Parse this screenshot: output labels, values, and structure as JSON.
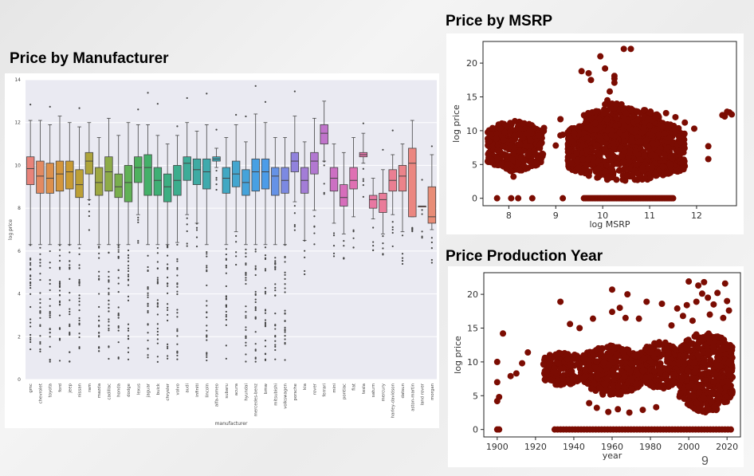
{
  "slide": {
    "title_manufacturer": "Price by Manufacturer",
    "title_msrp": "Price by MSRP",
    "title_year": "Price Production Year",
    "page_number": "9"
  },
  "chart_data": [
    {
      "type": "box",
      "title": "Price by Manufacturer",
      "xlabel": "manufacturer",
      "ylabel": "log price",
      "ylim": [
        0,
        14
      ],
      "yticks": [
        0,
        2,
        4,
        6,
        8,
        10,
        12,
        14
      ],
      "grid": true,
      "series": [
        {
          "name": "gmc",
          "q1": 9.1,
          "median": 9.85,
          "q3": 10.4,
          "lo": 6.3,
          "hi": 12.1,
          "color": "#e8837a"
        },
        {
          "name": "chevrolet",
          "q1": 8.7,
          "median": 9.5,
          "q3": 10.2,
          "lo": 6.3,
          "hi": 12.1,
          "color": "#e38a62"
        },
        {
          "name": "toyota",
          "q1": 8.7,
          "median": 9.4,
          "q3": 10.1,
          "lo": 6.3,
          "hi": 11.9,
          "color": "#dd904c"
        },
        {
          "name": "ford",
          "q1": 8.8,
          "median": 9.6,
          "q3": 10.2,
          "lo": 6.3,
          "hi": 12.3,
          "color": "#d4963c"
        },
        {
          "name": "jeep",
          "q1": 8.9,
          "median": 9.7,
          "q3": 10.2,
          "lo": 6.3,
          "hi": 12.0,
          "color": "#c99b33"
        },
        {
          "name": "nissan",
          "q1": 8.5,
          "median": 9.1,
          "q3": 9.8,
          "lo": 6.3,
          "hi": 11.8,
          "color": "#bca036"
        },
        {
          "name": "ram",
          "q1": 9.6,
          "median": 10.2,
          "q3": 10.6,
          "lo": 8.4,
          "hi": 12.0,
          "color": "#aea43c"
        },
        {
          "name": "mazda",
          "q1": 8.6,
          "median": 9.2,
          "q3": 9.9,
          "lo": 6.3,
          "hi": 11.3,
          "color": "#9ea843"
        },
        {
          "name": "cadillac",
          "q1": 8.8,
          "median": 9.7,
          "q3": 10.4,
          "lo": 6.3,
          "hi": 12.2,
          "color": "#8dab48"
        },
        {
          "name": "honda",
          "q1": 8.5,
          "median": 9.0,
          "q3": 9.6,
          "lo": 6.3,
          "hi": 11.4,
          "color": "#79ae4d"
        },
        {
          "name": "dodge",
          "q1": 8.3,
          "median": 9.2,
          "q3": 10.0,
          "lo": 6.3,
          "hi": 12.0,
          "color": "#61b156"
        },
        {
          "name": "lexus",
          "q1": 9.2,
          "median": 9.9,
          "q3": 10.4,
          "lo": 7.7,
          "hi": 11.9,
          "color": "#4fb15e"
        },
        {
          "name": "jaguar",
          "q1": 8.6,
          "median": 9.9,
          "q3": 10.5,
          "lo": 6.3,
          "hi": 11.9,
          "color": "#44b069"
        },
        {
          "name": "buick",
          "q1": 8.6,
          "median": 9.3,
          "q3": 9.9,
          "lo": 6.3,
          "hi": 11.4,
          "color": "#3faf75"
        },
        {
          "name": "chrysler",
          "q1": 8.3,
          "median": 9.0,
          "q3": 9.6,
          "lo": 6.3,
          "hi": 11.0,
          "color": "#3dae82"
        },
        {
          "name": "volvo",
          "q1": 8.6,
          "median": 9.3,
          "q3": 10.0,
          "lo": 6.4,
          "hi": 11.4,
          "color": "#3cad8d"
        },
        {
          "name": "audi",
          "q1": 9.3,
          "median": 10.1,
          "q3": 10.4,
          "lo": 7.7,
          "hi": 12.0,
          "color": "#3dac98"
        },
        {
          "name": "infiniti",
          "q1": 9.1,
          "median": 9.8,
          "q3": 10.3,
          "lo": 7.3,
          "hi": 11.6,
          "color": "#3eaba3"
        },
        {
          "name": "lincoln",
          "q1": 8.9,
          "median": 9.7,
          "q3": 10.3,
          "lo": 6.3,
          "hi": 11.9,
          "color": "#3faaad"
        },
        {
          "name": "alfa-romeo",
          "q1": 10.2,
          "median": 10.3,
          "q3": 10.4,
          "lo": 9.9,
          "hi": 10.8,
          "color": "#40a9b8"
        },
        {
          "name": "subaru",
          "q1": 8.7,
          "median": 9.4,
          "q3": 9.9,
          "lo": 6.3,
          "hi": 11.3,
          "color": "#41a8c3"
        },
        {
          "name": "acura",
          "q1": 9.0,
          "median": 9.6,
          "q3": 10.2,
          "lo": 6.9,
          "hi": 11.9,
          "color": "#43a6cf"
        },
        {
          "name": "hyundai",
          "q1": 8.6,
          "median": 9.2,
          "q3": 9.8,
          "lo": 6.3,
          "hi": 11.1,
          "color": "#45a3da"
        },
        {
          "name": "mercedes-benz",
          "q1": 8.8,
          "median": 9.7,
          "q3": 10.3,
          "lo": 6.3,
          "hi": 12.4,
          "color": "#48a0e3"
        },
        {
          "name": "bmw",
          "q1": 8.9,
          "median": 9.7,
          "q3": 10.3,
          "lo": 6.3,
          "hi": 12.0,
          "color": "#4c9ce8"
        },
        {
          "name": "mitsubishi",
          "q1": 8.6,
          "median": 9.5,
          "q3": 9.9,
          "lo": 6.3,
          "hi": 11.3,
          "color": "#6592e6"
        },
        {
          "name": "volkswagen",
          "q1": 8.7,
          "median": 9.3,
          "q3": 9.9,
          "lo": 6.3,
          "hi": 11.3,
          "color": "#7c89e2"
        },
        {
          "name": "porsche",
          "q1": 9.7,
          "median": 10.2,
          "q3": 10.6,
          "lo": 8.3,
          "hi": 12.3,
          "color": "#9182dd"
        },
        {
          "name": "kia",
          "q1": 8.7,
          "median": 9.3,
          "q3": 9.9,
          "lo": 6.5,
          "hi": 11.1,
          "color": "#a37dd7"
        },
        {
          "name": "rover",
          "q1": 9.6,
          "median": 10.2,
          "q3": 10.6,
          "lo": 7.9,
          "hi": 12.2,
          "color": "#b278d1"
        },
        {
          "name": "ferrari",
          "q1": 11.0,
          "median": 11.5,
          "q3": 11.9,
          "lo": 10.2,
          "hi": 13.0,
          "color": "#c074cb"
        },
        {
          "name": "mini",
          "q1": 8.8,
          "median": 9.4,
          "q3": 9.9,
          "lo": 7.3,
          "hi": 11.0,
          "color": "#cc70c3"
        },
        {
          "name": "pontiac",
          "q1": 8.1,
          "median": 8.5,
          "q3": 9.1,
          "lo": 6.8,
          "hi": 10.6,
          "color": "#d66ebb"
        },
        {
          "name": "fiat",
          "q1": 8.9,
          "median": 9.3,
          "q3": 9.9,
          "lo": 7.6,
          "hi": 11.3,
          "color": "#df70b3"
        },
        {
          "name": "tesla",
          "q1": 10.4,
          "median": 10.5,
          "q3": 10.6,
          "lo": 10.1,
          "hi": 11.5,
          "color": "#e574aa"
        },
        {
          "name": "saturn",
          "q1": 8.0,
          "median": 8.4,
          "q3": 8.6,
          "lo": 7.5,
          "hi": 9.4,
          "color": "#e878a2"
        },
        {
          "name": "mercury",
          "q1": 7.8,
          "median": 8.4,
          "q3": 8.7,
          "lo": 6.8,
          "hi": 9.8,
          "color": "#ea7c9a"
        },
        {
          "name": "harley-davidson",
          "q1": 8.8,
          "median": 9.3,
          "q3": 9.8,
          "lo": 7.7,
          "hi": 10.5,
          "color": "#ea7f92"
        },
        {
          "name": "datsun",
          "q1": 8.8,
          "median": 9.5,
          "q3": 10.0,
          "lo": 6.9,
          "hi": 11.0,
          "color": "#eb838a"
        },
        {
          "name": "aston-martin",
          "q1": 7.6,
          "median": 10.1,
          "q3": 10.8,
          "lo": 7.6,
          "hi": 12.1,
          "color": "#eb8680"
        },
        {
          "name": "land rover",
          "q1": 8.1,
          "median": 8.1,
          "q3": 8.1,
          "lo": 8.1,
          "hi": 8.1,
          "color": "#ea897a"
        },
        {
          "name": "morgan",
          "q1": 7.3,
          "median": 7.6,
          "q3": 9.0,
          "lo": 7.0,
          "hi": 10.5,
          "color": "#e88c76"
        }
      ]
    },
    {
      "type": "scatter",
      "title": "Price by MSRP",
      "xlabel": "log MSRP",
      "ylabel": "log price",
      "xlim": [
        7.45,
        12.85
      ],
      "ylim": [
        -1.1,
        23.2
      ],
      "xticks": [
        8,
        9,
        10,
        11,
        12
      ],
      "yticks": [
        0,
        5,
        10,
        15,
        20
      ],
      "grid": false,
      "color": "#7b0c02",
      "clusters": [
        {
          "x": [
            7.55,
            8.75
          ],
          "y": [
            4.0,
            11.5
          ]
        },
        {
          "x": [
            9.25,
            11.75
          ],
          "y": [
            2.5,
            12.0
          ]
        },
        {
          "x": [
            9.6,
            11.2
          ],
          "y": [
            8.0,
            13.5
          ]
        }
      ],
      "zero_price_x_range": [
        9.6,
        11.5
      ],
      "outliers": [
        [
          7.75,
          0
        ],
        [
          8.05,
          0
        ],
        [
          8.2,
          0
        ],
        [
          8.5,
          0
        ],
        [
          8.05,
          4.0
        ],
        [
          8.1,
          3.2
        ],
        [
          8.75,
          10.4
        ],
        [
          9.1,
          11.7
        ],
        [
          9.1,
          9.3
        ],
        [
          9.15,
          9.4
        ],
        [
          9.15,
          0
        ],
        [
          9.0,
          7.8
        ],
        [
          9.55,
          18.8
        ],
        [
          9.7,
          18.5
        ],
        [
          9.75,
          17.5
        ],
        [
          9.95,
          21.0
        ],
        [
          10.05,
          19.2
        ],
        [
          10.25,
          18.1
        ],
        [
          10.25,
          17.7
        ],
        [
          10.25,
          17.1
        ],
        [
          10.45,
          22.1
        ],
        [
          10.6,
          22.1
        ],
        [
          10.1,
          14.5
        ],
        [
          10.15,
          15.8
        ],
        [
          10.1,
          14.2
        ],
        [
          10.05,
          13.9
        ],
        [
          10.15,
          13.7
        ],
        [
          10.25,
          13.3
        ],
        [
          10.3,
          14.0
        ],
        [
          10.4,
          13.9
        ],
        [
          10.2,
          14.0
        ],
        [
          10.45,
          12.9
        ],
        [
          10.5,
          12.6
        ],
        [
          10.75,
          12.8
        ],
        [
          11.35,
          12.6
        ],
        [
          11.55,
          12.0
        ],
        [
          11.75,
          11.2
        ],
        [
          11.95,
          10.3
        ],
        [
          12.25,
          7.7
        ],
        [
          12.25,
          5.8
        ],
        [
          12.6,
          12.1
        ],
        [
          12.7,
          12.7
        ],
        [
          12.75,
          12.4
        ],
        [
          12.55,
          12.3
        ],
        [
          12.65,
          12.8
        ]
      ]
    },
    {
      "type": "scatter",
      "title": "Price Production Year",
      "xlabel": "year",
      "ylabel": "log price",
      "xlim": [
        1893,
        2027
      ],
      "ylim": [
        -1.1,
        23.2
      ],
      "xticks": [
        1900,
        1920,
        1940,
        1960,
        1980,
        2000,
        2020
      ],
      "yticks": [
        0,
        5,
        10,
        15,
        20
      ],
      "grid": false,
      "color": "#7b0c02",
      "clusters": [
        {
          "x": [
            1924,
            1944
          ],
          "y": [
            6.5,
            11.5
          ]
        },
        {
          "x": [
            1945,
            1975
          ],
          "y": [
            5.0,
            12.5
          ]
        },
        {
          "x": [
            1975,
            1995
          ],
          "y": [
            6.0,
            13.0
          ]
        },
        {
          "x": [
            1995,
            2023
          ],
          "y": [
            2.5,
            14.5
          ]
        }
      ],
      "zero_price_x_range": [
        1930,
        2022
      ],
      "outliers": [
        [
          1900,
          0
        ],
        [
          1901,
          0
        ],
        [
          1900,
          4.2
        ],
        [
          1900,
          7.0
        ],
        [
          1900,
          10.0
        ],
        [
          1901,
          4.8
        ],
        [
          1903,
          14.2
        ],
        [
          1907,
          7.9
        ],
        [
          1910,
          8.3
        ],
        [
          1913,
          9.8
        ],
        [
          1916,
          11.4
        ],
        [
          1933,
          18.9
        ],
        [
          1938,
          15.6
        ],
        [
          1943,
          15.0
        ],
        [
          1950,
          16.4
        ],
        [
          1960,
          20.7
        ],
        [
          1960,
          17.4
        ],
        [
          1964,
          18.0
        ],
        [
          1968,
          20.0
        ],
        [
          1967,
          16.5
        ],
        [
          1974,
          16.4
        ],
        [
          1978,
          18.9
        ],
        [
          1986,
          18.6
        ],
        [
          1994,
          17.9
        ],
        [
          1997,
          16.8
        ],
        [
          1999,
          18.4
        ],
        [
          2000,
          21.9
        ],
        [
          2004,
          18.9
        ],
        [
          2005,
          21.3
        ],
        [
          2007,
          20.1
        ],
        [
          2008,
          21.8
        ],
        [
          2010,
          19.5
        ],
        [
          2013,
          18.5
        ],
        [
          2015,
          20.2
        ],
        [
          2019,
          21.6
        ],
        [
          2020,
          19.0
        ],
        [
          2021,
          17.6
        ],
        [
          2018,
          16.5
        ],
        [
          2011,
          17.0
        ],
        [
          2002,
          16.1
        ],
        [
          1991,
          15.4
        ],
        [
          1948,
          3.9
        ],
        [
          1952,
          3.2
        ],
        [
          1958,
          2.6
        ],
        [
          1963,
          3.0
        ],
        [
          1969,
          2.5
        ],
        [
          1976,
          2.9
        ],
        [
          1983,
          3.3
        ]
      ]
    }
  ],
  "colors": {
    "scatter": "#7b0c02",
    "box_bg": "#eaeaf2",
    "grid": "#ffffff"
  }
}
